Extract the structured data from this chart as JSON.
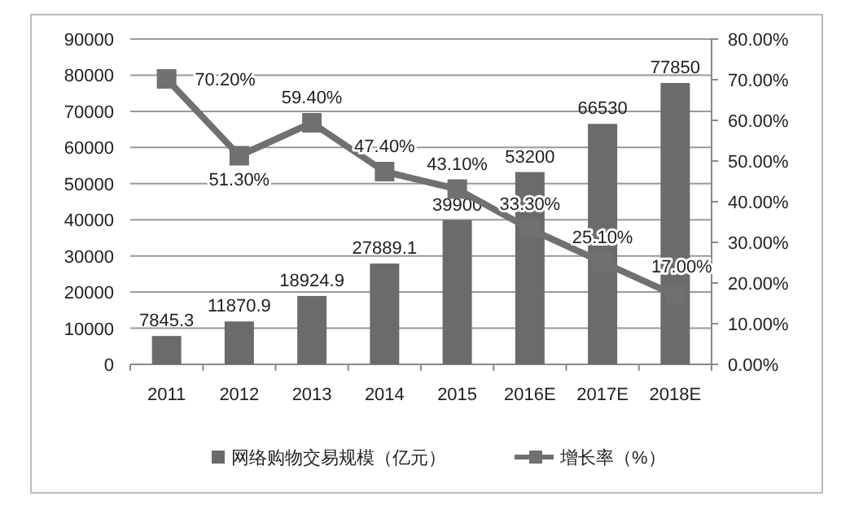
{
  "chart_data": {
    "type": "bar",
    "categories": [
      "2011",
      "2012",
      "2013",
      "2014",
      "2015",
      "2016E",
      "2017E",
      "2018E"
    ],
    "series": [
      {
        "name": "网络购物交易规模（亿元）",
        "color": "#6b6b6b",
        "values": [
          7845.3,
          11870.9,
          18924.9,
          27889.1,
          39900,
          53200,
          66530,
          77850
        ],
        "value_labels": [
          "7845.3",
          "11870.9",
          "18924.9",
          "27889.1",
          "39900",
          "53200",
          "66530",
          "77850"
        ]
      },
      {
        "name": "增长率（%）",
        "type": "line",
        "axis": "y2",
        "color": "#707070",
        "marker": "square",
        "values": [
          70.2,
          51.3,
          59.4,
          47.4,
          43.1,
          33.3,
          25.1,
          17.0
        ],
        "value_labels": [
          "70.20%",
          "51.30%",
          "59.40%",
          "47.40%",
          "43.10%",
          "33.30%",
          "25.10%",
          "17.00%"
        ]
      }
    ],
    "ylim": [
      0,
      90000
    ],
    "yticks": [
      0,
      10000,
      20000,
      30000,
      40000,
      50000,
      60000,
      70000,
      80000,
      90000
    ],
    "y2lim": [
      0,
      80
    ],
    "y2ticks": [
      {
        "value": 0,
        "label": "0.00%"
      },
      {
        "value": 10,
        "label": "10.00%"
      },
      {
        "value": 20,
        "label": "20.00%"
      },
      {
        "value": 30,
        "label": "30.00%"
      },
      {
        "value": 40,
        "label": "40.00%"
      },
      {
        "value": 50,
        "label": "50.00%"
      },
      {
        "value": 60,
        "label": "60.00%"
      },
      {
        "value": 70,
        "label": "70.00%"
      },
      {
        "value": 80,
        "label": "80.00%"
      }
    ],
    "grid": "y",
    "legend": "bottom"
  }
}
